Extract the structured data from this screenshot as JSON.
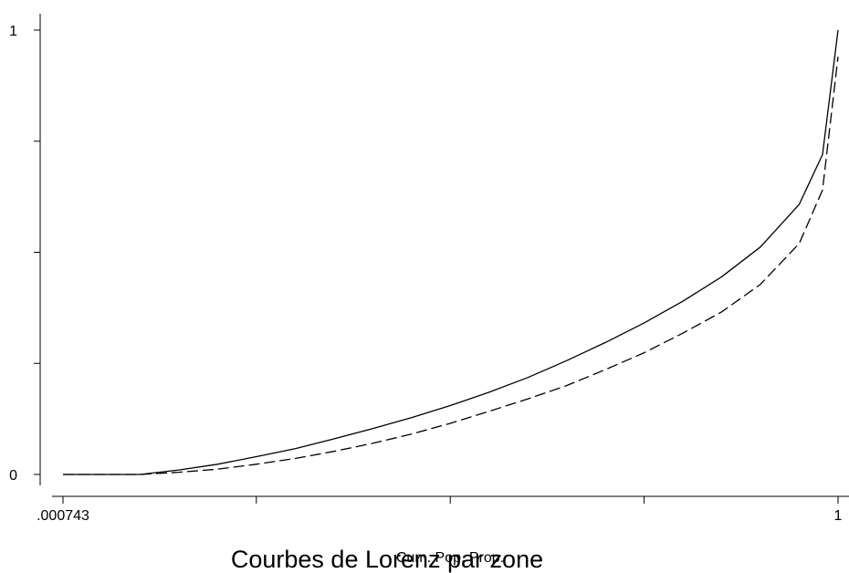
{
  "chart_data": {
    "type": "line",
    "title": "Courbes de Lorenz par zone",
    "xlabel": "Cum. Pop. Prop.",
    "ylabel": "",
    "xlim": [
      0.000743,
      1
    ],
    "ylim": [
      0,
      1
    ],
    "x_tick_values": [
      0.000743,
      0.25,
      0.5,
      0.75,
      1
    ],
    "x_tick_labels": [
      ".000743",
      "",
      "",
      "",
      "1"
    ],
    "y_tick_values": [
      0,
      0.25,
      0.5,
      0.75,
      1
    ],
    "y_tick_labels": [
      "0",
      "",
      "",
      "",
      "1"
    ],
    "grid": false,
    "legend": "none",
    "series": [
      {
        "style": "solid",
        "x": [
          0.000743,
          0.05,
          0.1,
          0.15,
          0.2,
          0.25,
          0.3,
          0.35,
          0.4,
          0.45,
          0.5,
          0.55,
          0.6,
          0.65,
          0.7,
          0.75,
          0.8,
          0.85,
          0.9,
          0.95,
          0.98,
          1
        ],
        "values": [
          0,
          0,
          0,
          0.01,
          0.023,
          0.04,
          0.058,
          0.08,
          0.103,
          0.128,
          0.155,
          0.185,
          0.218,
          0.256,
          0.297,
          0.341,
          0.39,
          0.445,
          0.512,
          0.608,
          0.72,
          1
        ]
      },
      {
        "style": "dashed",
        "x": [
          0.000743,
          0.05,
          0.1,
          0.15,
          0.2,
          0.25,
          0.3,
          0.35,
          0.4,
          0.45,
          0.5,
          0.55,
          0.6,
          0.65,
          0.7,
          0.75,
          0.8,
          0.85,
          0.9,
          0.95,
          0.98,
          1
        ],
        "values": [
          0,
          0,
          0,
          0.005,
          0.012,
          0.023,
          0.036,
          0.052,
          0.07,
          0.091,
          0.115,
          0.142,
          0.17,
          0.2,
          0.236,
          0.274,
          0.318,
          0.366,
          0.428,
          0.52,
          0.64,
          0.94
        ]
      }
    ]
  }
}
